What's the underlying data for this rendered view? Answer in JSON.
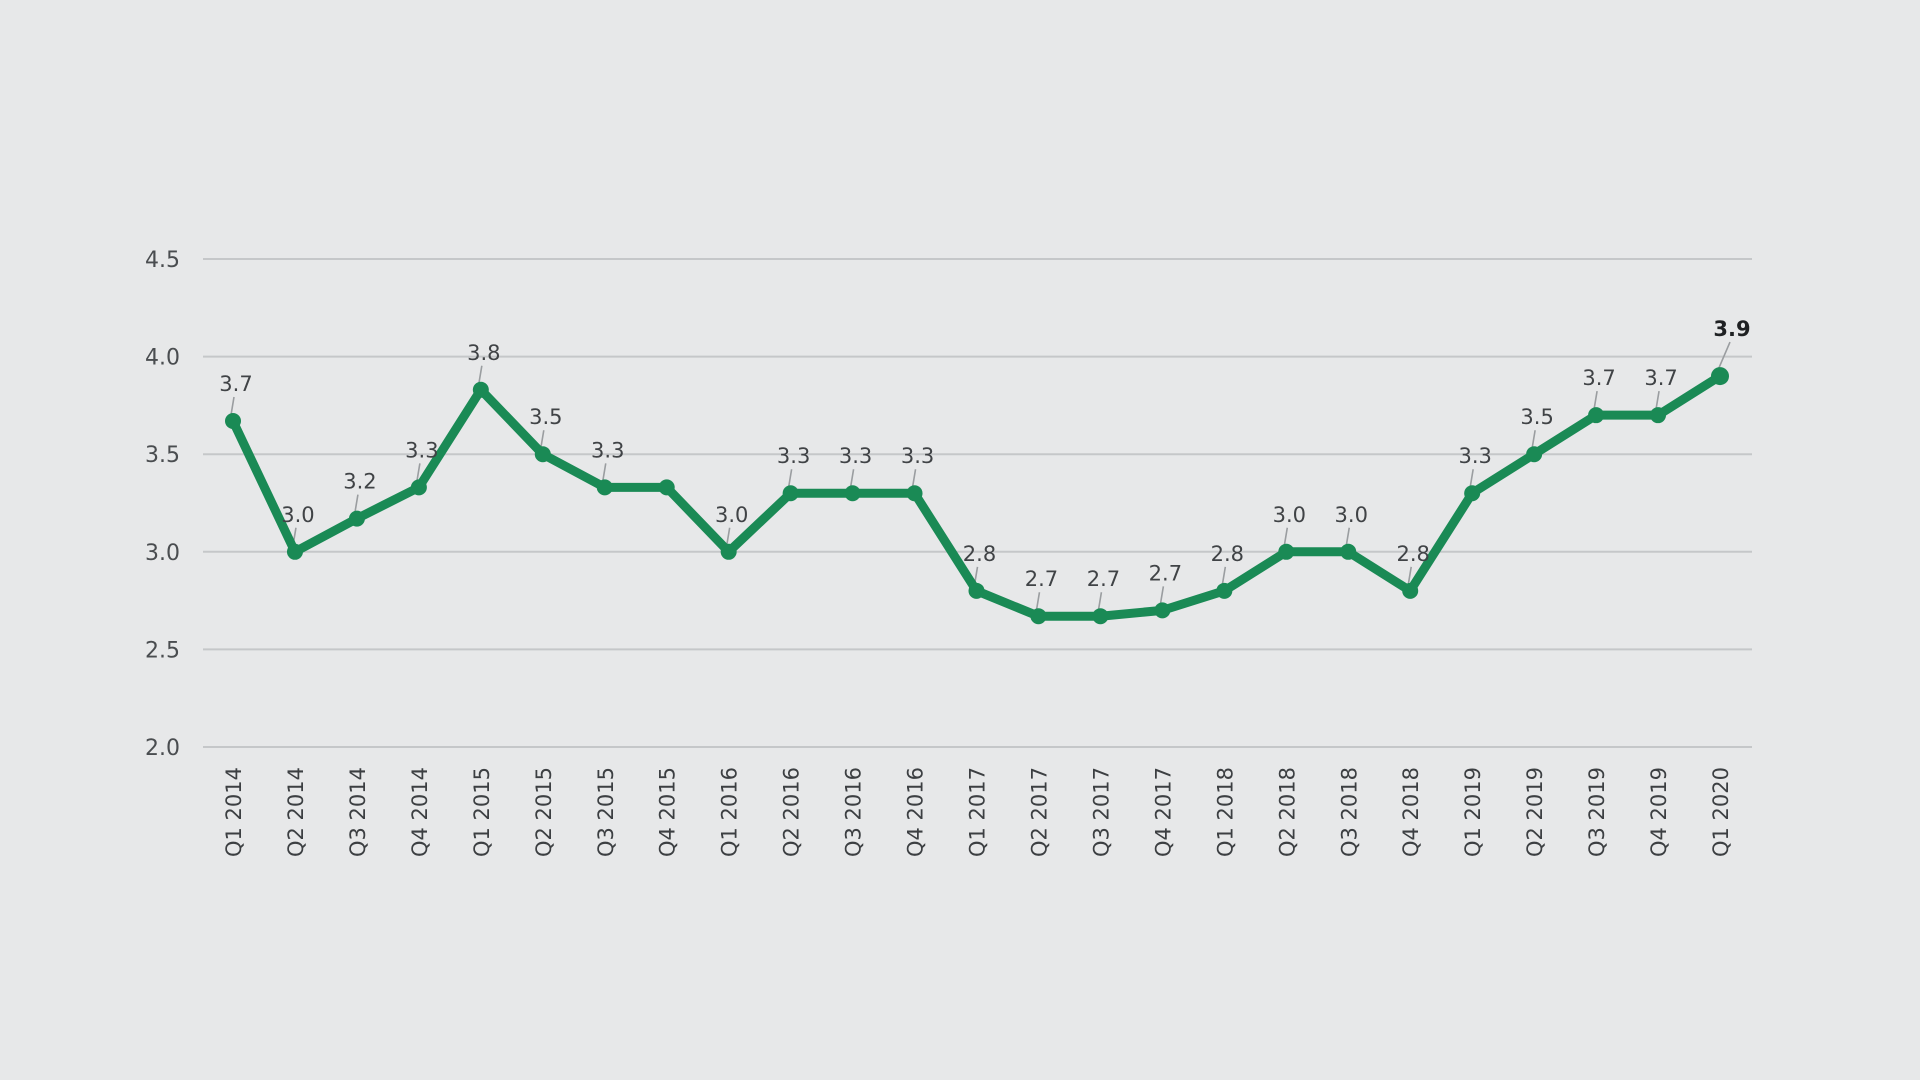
{
  "chart_data": {
    "type": "line",
    "title": "",
    "xlabel": "",
    "ylabel": "",
    "ylim": [
      2.0,
      4.5
    ],
    "yticks": [
      "2.0",
      "2.5",
      "3.0",
      "3.5",
      "4.0",
      "4.5"
    ],
    "grid": true,
    "legend": "none",
    "line_color": "#1a8a55",
    "categories": [
      "Q1 2014",
      "Q2 2014",
      "Q3 2014",
      "Q4 2014",
      "Q1 2015",
      "Q2 2015",
      "Q3 2015",
      "Q4 2015",
      "Q1 2016",
      "Q2 2016",
      "Q3 2016",
      "Q4 2016",
      "Q1 2017",
      "Q2 2017",
      "Q3 2017",
      "Q4 2017",
      "Q1 2018",
      "Q2 2018",
      "Q3 2018",
      "Q4 2018",
      "Q1 2019",
      "Q2 2019",
      "Q3 2019",
      "Q4 2019",
      "Q1 2020"
    ],
    "values": [
      3.67,
      3.0,
      3.17,
      3.33,
      3.83,
      3.5,
      3.33,
      3.33,
      3.0,
      3.3,
      3.3,
      3.3,
      2.8,
      2.67,
      2.67,
      2.7,
      2.8,
      3.0,
      3.0,
      2.8,
      3.3,
      3.5,
      3.7,
      3.7,
      3.9
    ],
    "data_labels": [
      "3.7",
      "3.0",
      "3.2",
      "3.3",
      "3.8",
      "3.5",
      "3.3",
      "",
      "3.0",
      "3.3",
      "3.3",
      "3.3",
      "2.8",
      "2.7",
      "2.7",
      "2.7",
      "2.8",
      "3.0",
      "3.0",
      "2.8",
      "3.3",
      "3.5",
      "3.7",
      "3.7",
      "3.9"
    ]
  }
}
